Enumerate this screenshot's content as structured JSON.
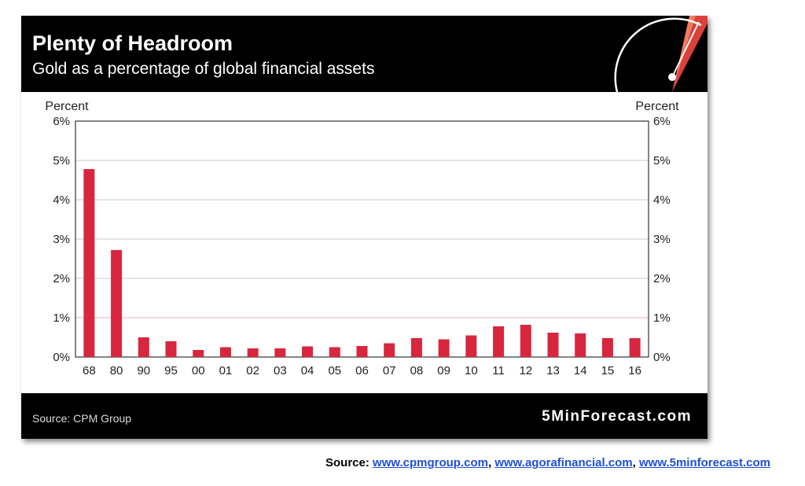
{
  "header": {
    "title": "Plenty of Headroom",
    "subtitle": "Gold as a percentage of global financial assets"
  },
  "footer": {
    "source": "Source: CPM Group",
    "brand": "5MinForecast.com"
  },
  "below": {
    "label": "Source:",
    "links": [
      "www.cpmgroup.com",
      "www.agorafinancial.com",
      "www.5minforecast.com"
    ],
    "separator": ", "
  },
  "colors": {
    "bar": "#d7263d",
    "header_bg": "#000000",
    "link": "#1f4fd1"
  },
  "icons": [
    "gauge-icon"
  ],
  "chart_data": {
    "type": "bar",
    "title": "Plenty of Headroom",
    "subtitle": "Gold as a percentage of global financial assets",
    "ylabel_left": "Percent",
    "ylabel_right": "Percent",
    "categories": [
      "68",
      "80",
      "90",
      "95",
      "00",
      "01",
      "02",
      "03",
      "04",
      "05",
      "06",
      "07",
      "08",
      "09",
      "10",
      "11",
      "12",
      "13",
      "14",
      "15",
      "16"
    ],
    "values": [
      4.78,
      2.72,
      0.5,
      0.4,
      0.18,
      0.25,
      0.22,
      0.22,
      0.27,
      0.25,
      0.28,
      0.35,
      0.48,
      0.45,
      0.55,
      0.78,
      0.82,
      0.62,
      0.6,
      0.48,
      0.48
    ],
    "ylim": [
      0,
      6
    ],
    "yticks": [
      "0%",
      "1%",
      "2%",
      "3%",
      "4%",
      "5%",
      "6%"
    ],
    "grid": true
  }
}
